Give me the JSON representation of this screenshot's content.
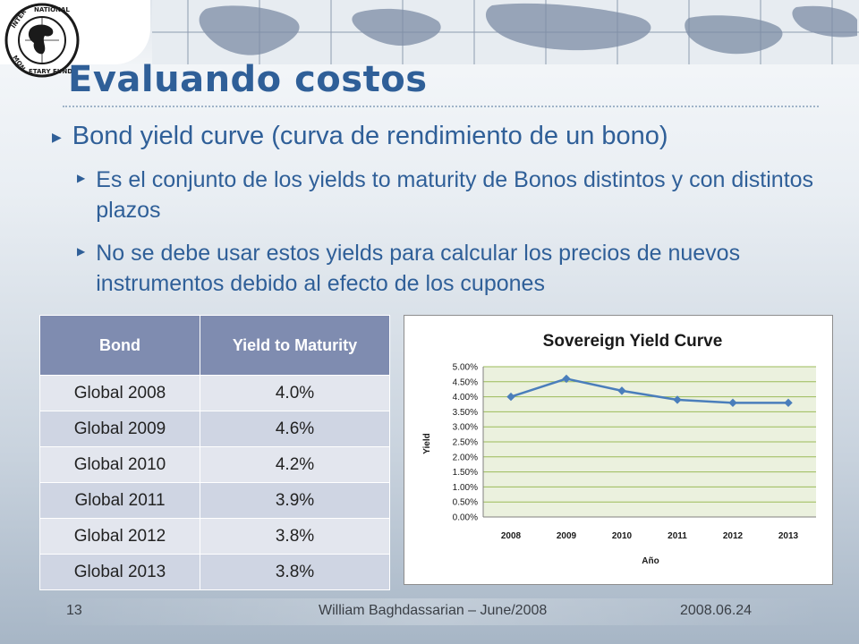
{
  "slide": {
    "title": "Evaluando costos",
    "bullets": {
      "main": "Bond yield curve (curva de rendimiento de un bono)",
      "sub1": "Es el conjunto de los yields to maturity de Bonos distintos y con distintos plazos",
      "sub2": "No se debe usar estos yields para calcular los precios de nuevos instrumentos debido al efecto de los cupones"
    },
    "logo_text": "INTERNATIONAL MONETARY FUND"
  },
  "table": {
    "headers": [
      "Bond",
      "Yield to Maturity"
    ],
    "rows": [
      [
        "Global 2008",
        "4.0%"
      ],
      [
        "Global 2009",
        "4.6%"
      ],
      [
        "Global 2010",
        "4.2%"
      ],
      [
        "Global 2011",
        "3.9%"
      ],
      [
        "Global 2012",
        "3.8%"
      ],
      [
        "Global 2013",
        "3.8%"
      ]
    ]
  },
  "chart_data": {
    "type": "line",
    "title": "Sovereign Yield Curve",
    "xlabel": "Año",
    "ylabel": "Yield",
    "categories": [
      "2008",
      "2009",
      "2010",
      "2011",
      "2012",
      "2013"
    ],
    "series": [
      {
        "values": [
          4.0,
          4.6,
          4.2,
          3.9,
          3.8,
          3.8
        ]
      }
    ],
    "ylim": [
      0,
      5
    ],
    "yticks": [
      "0.00%",
      "0.50%",
      "1.00%",
      "1.50%",
      "2.00%",
      "2.50%",
      "3.00%",
      "3.50%",
      "4.00%",
      "4.50%",
      "5.00%"
    ],
    "grid": true,
    "legend": "none",
    "colors": {
      "line": "#4a7ebb",
      "plot_bg": "#ebf1de",
      "grid": "#9bbb59"
    }
  },
  "footer": {
    "page": "13",
    "author": "William Baghdassarian – June/2008",
    "date": "2008.06.24"
  },
  "colors": {
    "accent": "#2f5f98",
    "table_header": "#7f8cb0"
  }
}
